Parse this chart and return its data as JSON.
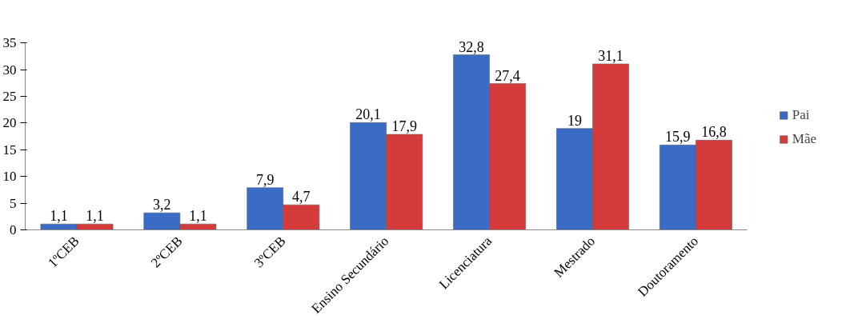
{
  "chart_data": {
    "type": "bar",
    "categories": [
      "1ºCEB",
      "2ºCEB",
      "3ºCEB",
      "Ensino Secundário",
      "Licenciatura",
      "Mestrado",
      "Doutoramento"
    ],
    "series": [
      {
        "name": "Pai",
        "color": "#3a6cc6",
        "values": [
          1.1,
          3.2,
          7.9,
          20.1,
          32.8,
          19,
          15.9
        ],
        "value_labels": [
          "1,1",
          "3,2",
          "7,9",
          "20,1",
          "32,8",
          "19",
          "15,9"
        ]
      },
      {
        "name": "Mãe",
        "color": "#d63b3b",
        "values": [
          1.1,
          1.1,
          4.7,
          17.9,
          27.4,
          31.1,
          16.8
        ],
        "value_labels": [
          "1,1",
          "1,1",
          "4,7",
          "17,9",
          "27,4",
          "31,1",
          "16,8"
        ]
      }
    ],
    "ylim": [
      0,
      35
    ],
    "yticks": [
      0,
      5,
      10,
      15,
      20,
      25,
      30,
      35
    ],
    "grid": false,
    "legend": "right"
  }
}
